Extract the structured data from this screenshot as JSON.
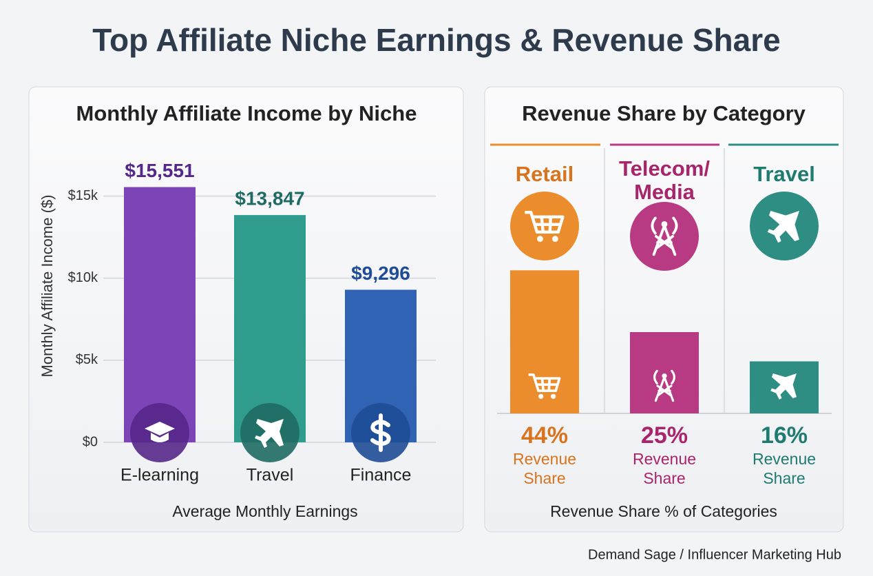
{
  "title": "Top Affiliate Niche Earnings & Revenue Share",
  "source": "Demand Sage / Influencer Marketing Hub",
  "chart_data": [
    {
      "type": "bar",
      "title": "Monthly Affiliate Income by Niche",
      "y_label": "Monthly Affiliate Income ($)",
      "x_label": "Average Monthly Earnings",
      "categories": [
        "E-learning",
        "Travel",
        "Finance"
      ],
      "values": [
        15551,
        13847,
        9296
      ],
      "value_labels": [
        "$15,551",
        "$13,847",
        "$9,296"
      ],
      "colors": [
        "#7d44b8",
        "#2f9c8e",
        "#3163b5"
      ],
      "label_colors": [
        "#55278a",
        "#1f6b63",
        "#1f4c96"
      ],
      "ylim": [
        0,
        17000
      ],
      "yticks": [
        {
          "value": 0,
          "label": "$0"
        },
        {
          "value": 5000,
          "label": "$5k"
        },
        {
          "value": 10000,
          "label": "$10k"
        },
        {
          "value": 15000,
          "label": "$15k"
        }
      ],
      "grid": true
    },
    {
      "type": "bar",
      "title": "Revenue Share by Category",
      "x_label": "Revenue Share % of Categories",
      "categories": [
        "Retail",
        "Telecom/ Media",
        "Travel"
      ],
      "values": [
        44,
        25,
        16
      ],
      "value_labels": [
        "44%",
        "25%",
        "16%"
      ],
      "bar_sublabel": "Revenue Share",
      "colors": [
        "#eb8d2c",
        "#b83a82",
        "#2e8e84"
      ],
      "label_colors": [
        "#d8731e",
        "#a8246b",
        "#1f7a70"
      ],
      "ylim": [
        0,
        50
      ]
    }
  ]
}
